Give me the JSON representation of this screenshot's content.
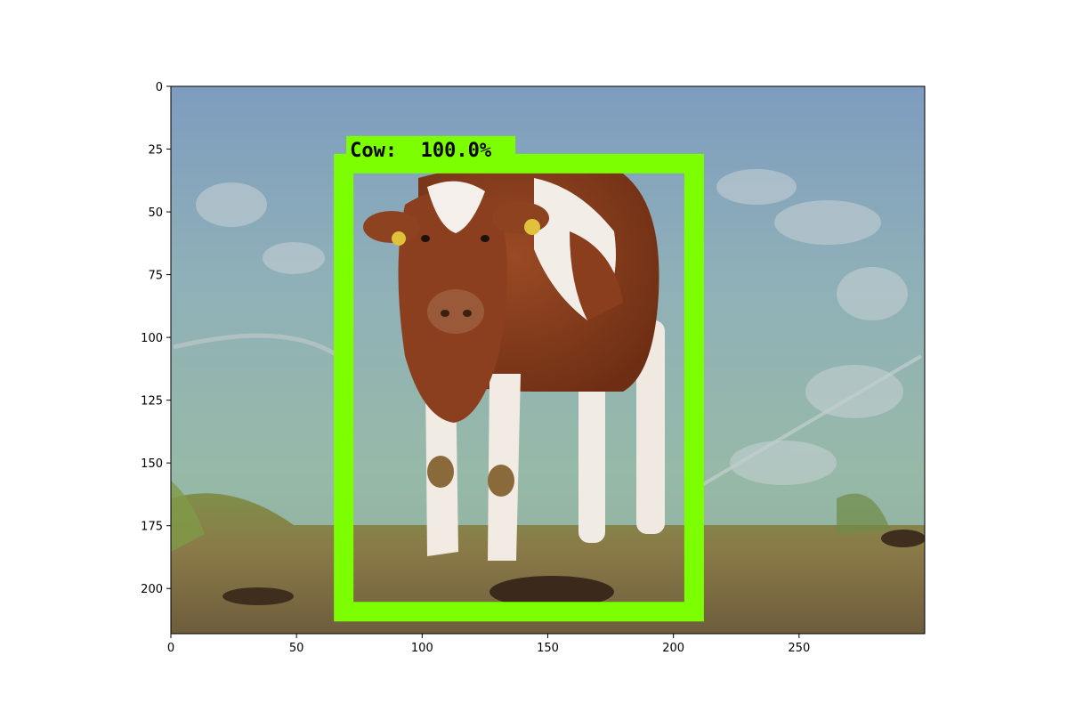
{
  "image": {
    "width": 300,
    "height": 218,
    "description_colors": {
      "sky": "#7f9fc0",
      "hills": "#8fb0b4",
      "meadow": "#93b7a6",
      "ground": "#7d7440",
      "cow_brown": "#8a3f1e",
      "cow_white": "#f2ece6"
    }
  },
  "axes": {
    "x_ticks": [
      "0",
      "50",
      "100",
      "150",
      "200",
      "250"
    ],
    "x_tick_values": [
      0,
      50,
      100,
      150,
      200,
      250
    ],
    "y_ticks": [
      "0",
      "25",
      "50",
      "75",
      "100",
      "125",
      "150",
      "175",
      "200"
    ],
    "y_tick_values": [
      0,
      25,
      50,
      75,
      100,
      125,
      150,
      175,
      200
    ],
    "xlim": [
      0,
      300
    ],
    "ylim": [
      218,
      0
    ]
  },
  "detection": {
    "label_text": "Cow:  100.0%",
    "box": {
      "x_min": 67,
      "y_min": 29,
      "x_max": 210,
      "y_max": 211
    },
    "color": "#7cff00"
  }
}
